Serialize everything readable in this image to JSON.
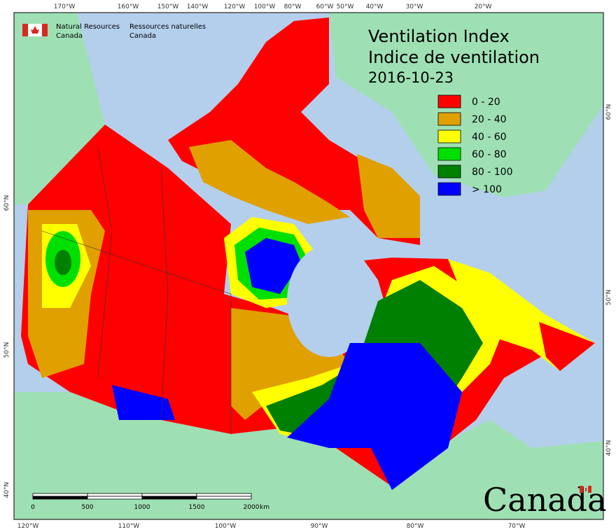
{
  "title": [
    "Ventilation Index",
    "Indice de ventilation",
    "2016-10-23"
  ],
  "agency": {
    "en": [
      "Natural Resources",
      "Canada"
    ],
    "fr": [
      "Ressources naturelles",
      "Canada"
    ]
  },
  "legend": [
    {
      "label": "0 - 20",
      "color": "#ff0000"
    },
    {
      "label": "20 - 40",
      "color": "#e0a000"
    },
    {
      "label": "40 - 60",
      "color": "#ffff00"
    },
    {
      "label": "60 - 80",
      "color": "#00e000"
    },
    {
      "label": "80 - 100",
      "color": "#008000"
    },
    {
      "label": "> 100",
      "color": "#0000ff"
    }
  ],
  "top_labels": [
    "170°W",
    "160°W",
    "150°W",
    "140°W",
    "120°W",
    "100°W",
    "80°W",
    "60°W",
    "50°W",
    "40°W",
    "30°W",
    "20°W"
  ],
  "bottom_labels": [
    "120°W",
    "110°W",
    "100°W",
    "90°W",
    "80°W",
    "70°W"
  ],
  "left_labels": [
    "60°N",
    "50°N",
    "40°N"
  ],
  "right_labels": [
    "60°N",
    "50°N",
    "40°N"
  ],
  "scale": {
    "ticks": [
      "0",
      "500",
      "1000",
      "1500",
      "2000"
    ],
    "unit": "km"
  },
  "wordmark": "Canada"
}
